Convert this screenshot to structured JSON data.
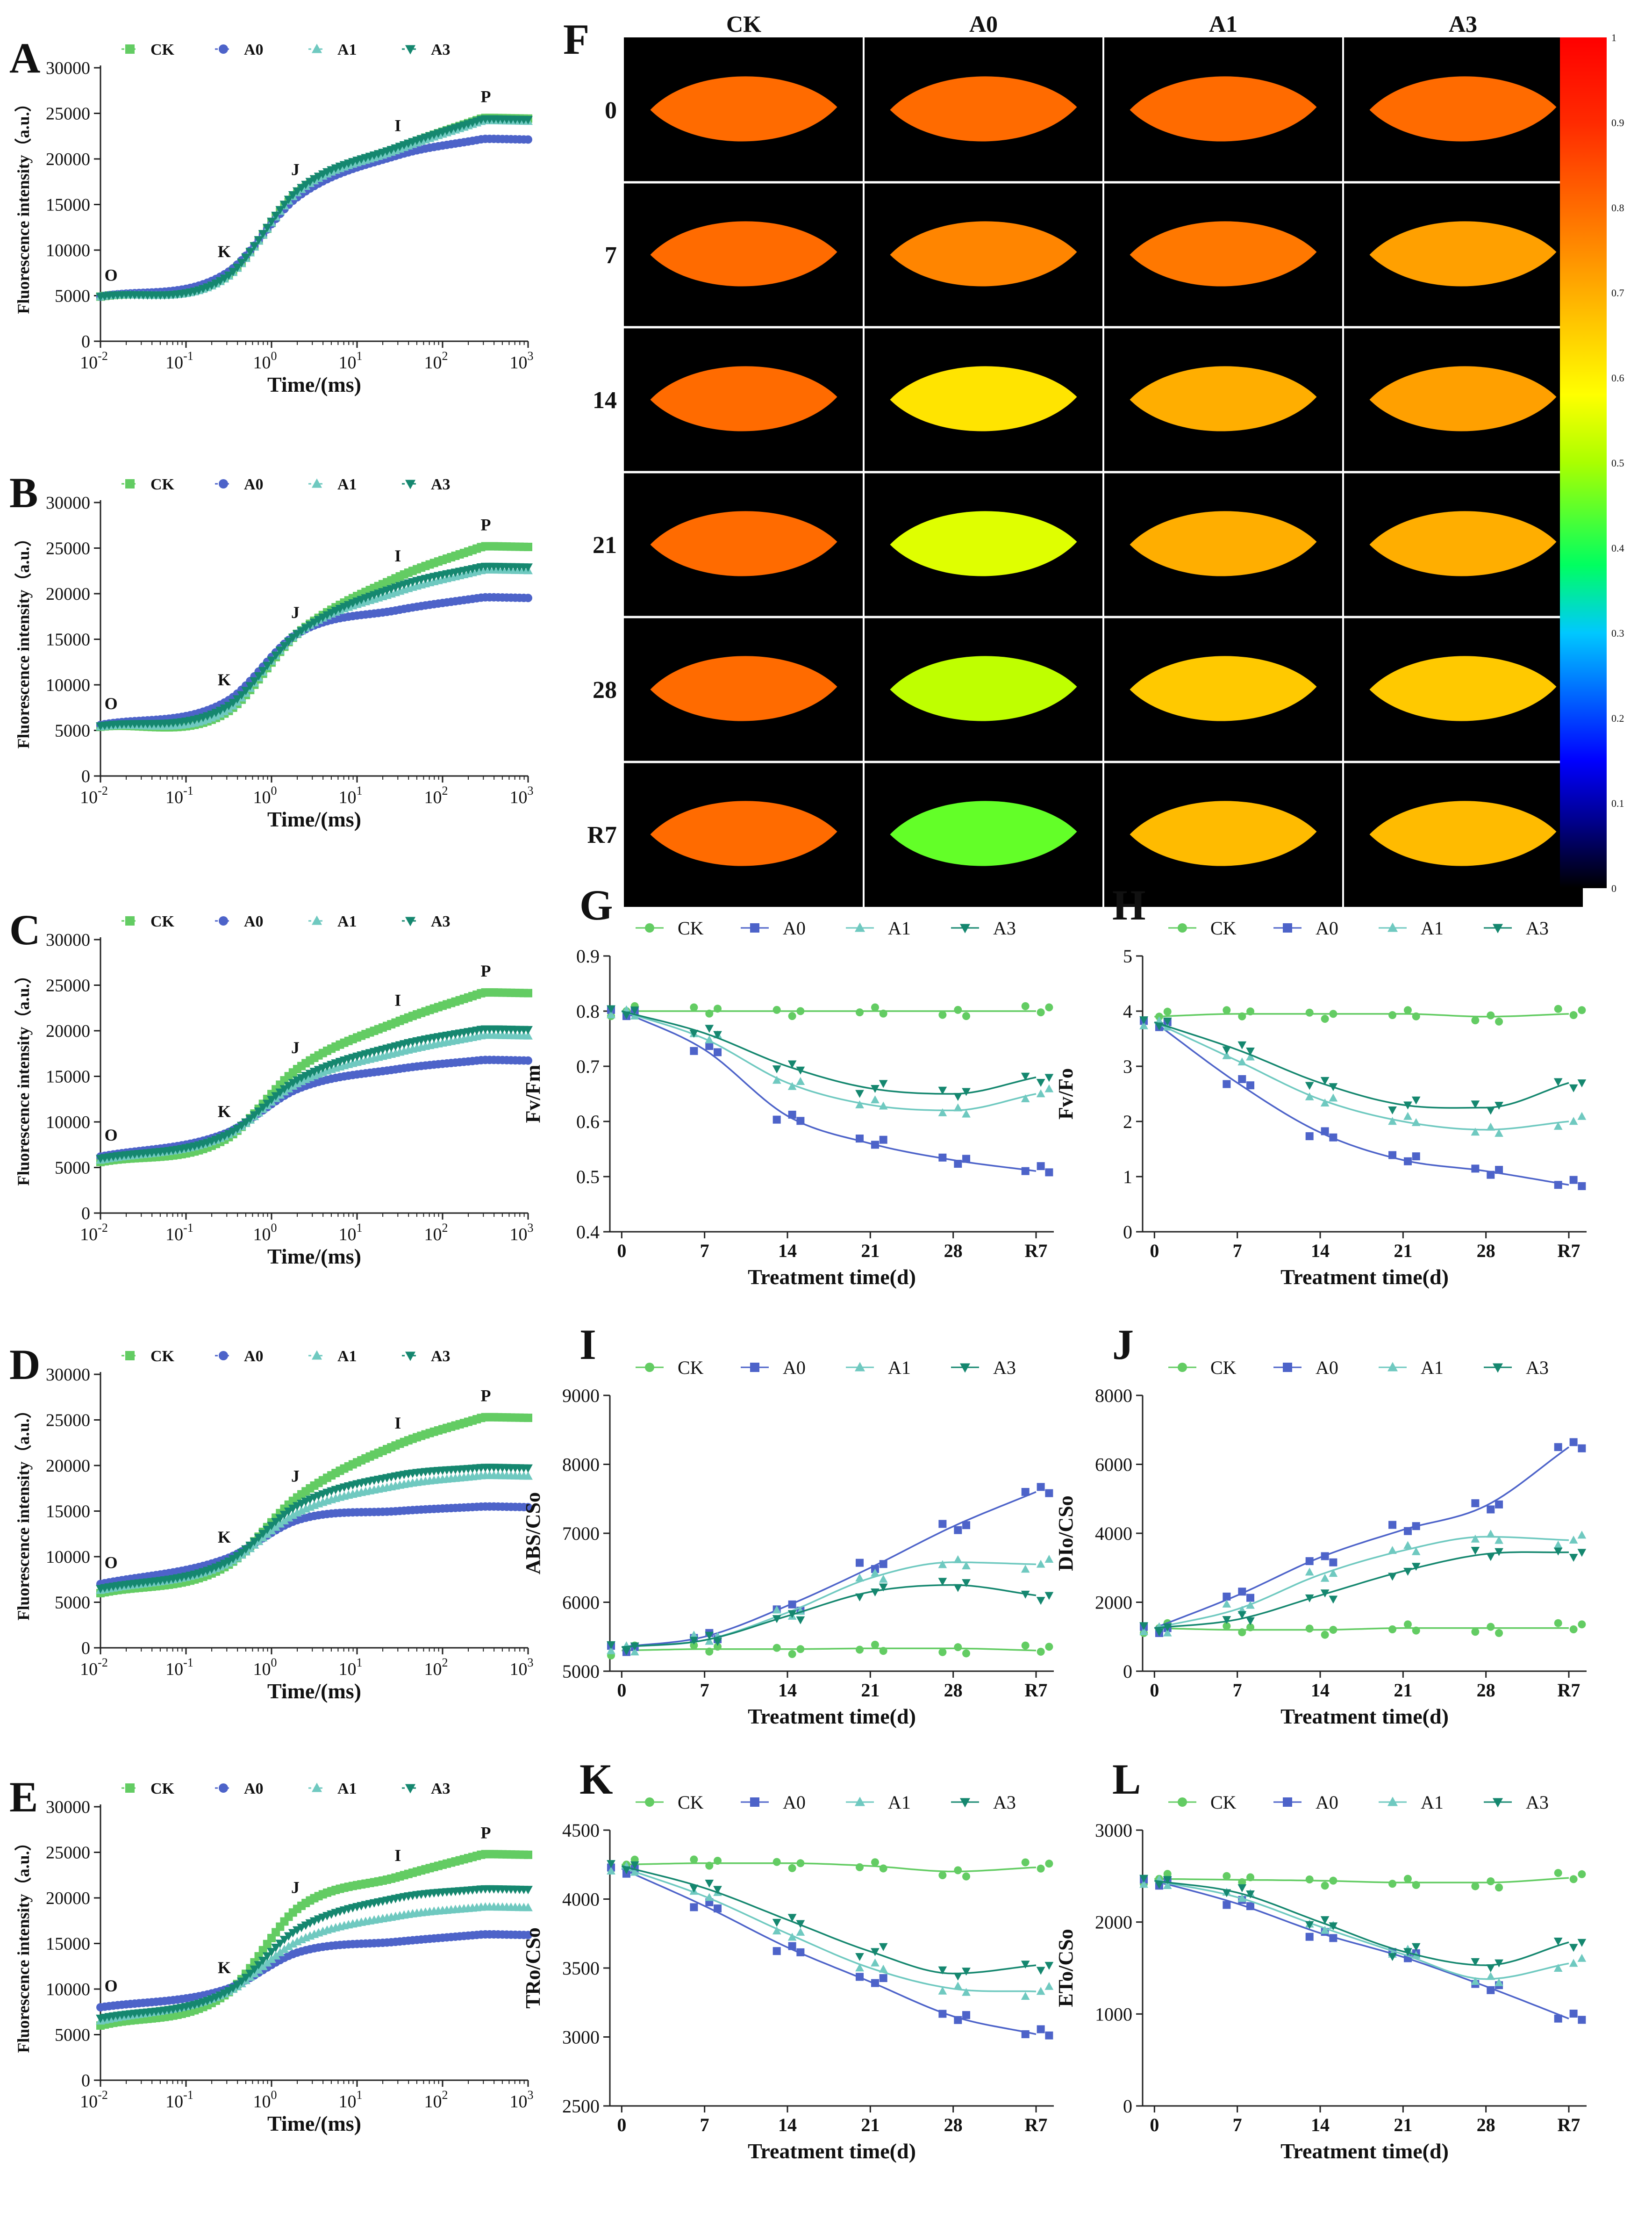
{
  "colors": {
    "CK": "#63cc63",
    "A0": "#4d63c9",
    "A1": "#6fc9c0",
    "A3": "#15876f"
  },
  "ojip": {
    "letters": [
      "A",
      "B",
      "C",
      "D",
      "E"
    ],
    "ylabel": "Fluorescence intensity（a.u.）",
    "xlabel": "Time/(ms)",
    "yticks": [
      "0",
      "5000",
      "10000",
      "15000",
      "20000",
      "25000",
      "30000"
    ],
    "xticks_exp": [
      "-2",
      "-1",
      "0",
      "1",
      "2",
      "3"
    ],
    "series_names": [
      "CK",
      "A0",
      "A1",
      "A3"
    ],
    "markers": {
      "CK": "square",
      "A0": "circle",
      "A1": "triangle-up",
      "A3": "triangle-down"
    },
    "point_labels": [
      "O",
      "K",
      "J",
      "I",
      "P"
    ]
  },
  "chart_data": [
    {
      "type": "scatter",
      "panel": "A",
      "x_scale": "log",
      "xlim": [
        0.01,
        1000
      ],
      "ylim": [
        0,
        30000
      ],
      "xlabel": "Time/(ms)",
      "ylabel": "Fluorescence intensity（a.u.）",
      "key_x": [
        0.01,
        0.3,
        2,
        30,
        300
      ],
      "series": [
        {
          "name": "CK",
          "values": [
            4900,
            7200,
            16200,
            21200,
            24500
          ]
        },
        {
          "name": "A0",
          "values": [
            4900,
            7500,
            15800,
            20400,
            22200
          ]
        },
        {
          "name": "A1",
          "values": [
            4900,
            7000,
            16300,
            21000,
            24200
          ]
        },
        {
          "name": "A3",
          "values": [
            4900,
            7100,
            16500,
            21300,
            24400
          ]
        }
      ]
    },
    {
      "type": "scatter",
      "panel": "B",
      "x_scale": "log",
      "xlim": [
        0.01,
        1000
      ],
      "ylim": [
        0,
        30000
      ],
      "xlabel": "Time/(ms)",
      "ylabel": "Fluorescence intensity（a.u.）",
      "key_x": [
        0.01,
        0.3,
        2,
        30,
        300
      ],
      "series": [
        {
          "name": "CK",
          "values": [
            5400,
            7000,
            15600,
            21800,
            25200
          ]
        },
        {
          "name": "A0",
          "values": [
            5600,
            8200,
            15600,
            18200,
            19600
          ]
        },
        {
          "name": "A1",
          "values": [
            5400,
            7200,
            15600,
            20200,
            22600
          ]
        },
        {
          "name": "A3",
          "values": [
            5500,
            7600,
            15600,
            20800,
            23000
          ]
        }
      ]
    },
    {
      "type": "scatter",
      "panel": "C",
      "x_scale": "log",
      "xlim": [
        0.01,
        1000
      ],
      "ylim": [
        0,
        30000
      ],
      "xlabel": "Time/(ms)",
      "ylabel": "Fluorescence intensity（a.u.）",
      "key_x": [
        0.01,
        0.3,
        2,
        30,
        300
      ],
      "series": [
        {
          "name": "CK",
          "values": [
            5600,
            8200,
            15800,
            21000,
            24200
          ]
        },
        {
          "name": "A0",
          "values": [
            6200,
            8800,
            13600,
            15800,
            16800
          ]
        },
        {
          "name": "A1",
          "values": [
            5800,
            8500,
            14200,
            17600,
            19500
          ]
        },
        {
          "name": "A3",
          "values": [
            6000,
            8600,
            14600,
            18400,
            20200
          ]
        }
      ]
    },
    {
      "type": "scatter",
      "panel": "D",
      "x_scale": "log",
      "xlim": [
        0.01,
        1000
      ],
      "ylim": [
        0,
        30000
      ],
      "xlabel": "Time/(ms)",
      "ylabel": "Fluorescence intensity（a.u.）",
      "key_x": [
        0.01,
        0.3,
        2,
        30,
        300
      ],
      "series": [
        {
          "name": "CK",
          "values": [
            6000,
            9000,
            16500,
            22300,
            25300
          ]
        },
        {
          "name": "A0",
          "values": [
            7000,
            9800,
            14000,
            15000,
            15500
          ]
        },
        {
          "name": "A1",
          "values": [
            6300,
            9200,
            14800,
            17800,
            18900
          ]
        },
        {
          "name": "A3",
          "values": [
            6500,
            9400,
            15600,
            18900,
            19800
          ]
        }
      ]
    },
    {
      "type": "scatter",
      "panel": "E",
      "x_scale": "log",
      "xlim": [
        0.01,
        1000
      ],
      "ylim": [
        0,
        30000
      ],
      "xlabel": "Time/(ms)",
      "ylabel": "Fluorescence intensity（a.u.）",
      "key_x": [
        0.01,
        0.3,
        2,
        30,
        300
      ],
      "series": [
        {
          "name": "CK",
          "values": [
            6000,
            9500,
            18800,
            22300,
            24800
          ]
        },
        {
          "name": "A0",
          "values": [
            8000,
            10000,
            14000,
            15200,
            16000
          ]
        },
        {
          "name": "A1",
          "values": [
            6500,
            9600,
            15200,
            18000,
            19000
          ]
        },
        {
          "name": "A3",
          "values": [
            6800,
            9700,
            16500,
            20000,
            21000
          ]
        }
      ]
    },
    {
      "type": "line",
      "panel": "G",
      "categories": [
        "0",
        "7",
        "14",
        "21",
        "28",
        "R7"
      ],
      "x": [
        0,
        7,
        14,
        21,
        28,
        35
      ],
      "ylabel": "Fv/Fm",
      "xlabel": "Treatment time(d)",
      "ylim": [
        0.4,
        0.9
      ],
      "yticks": [
        "0.4",
        "0.5",
        "0.6",
        "0.7",
        "0.8",
        "0.9"
      ],
      "series": [
        {
          "name": "CK",
          "values": [
            0.8,
            0.8,
            0.8,
            0.8,
            0.8,
            0.8
          ]
        },
        {
          "name": "A0",
          "values": [
            0.8,
            0.73,
            0.61,
            0.56,
            0.53,
            0.51
          ]
        },
        {
          "name": "A1",
          "values": [
            0.8,
            0.75,
            0.67,
            0.63,
            0.62,
            0.65
          ]
        },
        {
          "name": "A3",
          "values": [
            0.8,
            0.76,
            0.7,
            0.66,
            0.65,
            0.68
          ]
        }
      ]
    },
    {
      "type": "line",
      "panel": "H",
      "categories": [
        "0",
        "7",
        "14",
        "21",
        "28",
        "R7"
      ],
      "x": [
        0,
        7,
        14,
        21,
        28,
        35
      ],
      "ylabel": "Fv/Fo",
      "xlabel": "Treatment time(d)",
      "ylim": [
        0,
        5
      ],
      "yticks": [
        "0",
        "1",
        "2",
        "3",
        "4",
        "5"
      ],
      "series": [
        {
          "name": "CK",
          "values": [
            3.9,
            3.95,
            3.95,
            3.95,
            3.9,
            3.95
          ]
        },
        {
          "name": "A0",
          "values": [
            3.8,
            2.7,
            1.8,
            1.3,
            1.1,
            0.85
          ]
        },
        {
          "name": "A1",
          "values": [
            3.8,
            3.1,
            2.4,
            2.0,
            1.85,
            2.0
          ]
        },
        {
          "name": "A3",
          "values": [
            3.8,
            3.3,
            2.7,
            2.3,
            2.25,
            2.7
          ]
        }
      ]
    },
    {
      "type": "line",
      "panel": "I",
      "categories": [
        "0",
        "7",
        "14",
        "21",
        "28",
        "R7"
      ],
      "x": [
        0,
        7,
        14,
        21,
        28,
        35
      ],
      "ylabel": "ABS/CSo",
      "xlabel": "Treatment time(d)",
      "ylim": [
        5000,
        9000
      ],
      "yticks": [
        "5000",
        "6000",
        "7000",
        "8000",
        "9000"
      ],
      "series": [
        {
          "name": "CK",
          "values": [
            5300,
            5320,
            5320,
            5330,
            5330,
            5300
          ]
        },
        {
          "name": "A0",
          "values": [
            5350,
            5500,
            5950,
            6500,
            7100,
            7600
          ]
        },
        {
          "name": "A1",
          "values": [
            5350,
            5450,
            5850,
            6350,
            6580,
            6550
          ]
        },
        {
          "name": "A3",
          "values": [
            5350,
            5450,
            5800,
            6150,
            6250,
            6100
          ]
        }
      ]
    },
    {
      "type": "line",
      "panel": "J",
      "categories": [
        "0",
        "7",
        "14",
        "21",
        "28",
        "R7"
      ],
      "x": [
        0,
        7,
        14,
        21,
        28,
        35
      ],
      "ylabel": "DIo/CSo",
      "xlabel": "Treatment time(d)",
      "ylim": [
        0,
        8000
      ],
      "yticks": [
        "0",
        "2000",
        "4000",
        "6000",
        "8000"
      ],
      "series": [
        {
          "name": "CK",
          "values": [
            1250,
            1200,
            1200,
            1250,
            1250,
            1250
          ]
        },
        {
          "name": "A0",
          "values": [
            1250,
            2200,
            3300,
            4100,
            4800,
            6500
          ]
        },
        {
          "name": "A1",
          "values": [
            1250,
            1800,
            2800,
            3500,
            3900,
            3800
          ]
        },
        {
          "name": "A3",
          "values": [
            1250,
            1500,
            2200,
            2900,
            3400,
            3450
          ]
        }
      ]
    },
    {
      "type": "line",
      "panel": "K",
      "categories": [
        "0",
        "7",
        "14",
        "21",
        "28",
        "R7"
      ],
      "x": [
        0,
        7,
        14,
        21,
        28,
        35
      ],
      "ylabel": "TRo/CSo",
      "xlabel": "Treatment time(d)",
      "ylim": [
        2500,
        4500
      ],
      "yticks": [
        "2500",
        "3000",
        "3500",
        "4000",
        "4500"
      ],
      "series": [
        {
          "name": "CK",
          "values": [
            4250,
            4260,
            4260,
            4240,
            4200,
            4230
          ]
        },
        {
          "name": "A0",
          "values": [
            4220,
            3950,
            3650,
            3400,
            3150,
            3020
          ]
        },
        {
          "name": "A1",
          "values": [
            4230,
            4020,
            3750,
            3500,
            3350,
            3330
          ]
        },
        {
          "name": "A3",
          "values": [
            4240,
            4080,
            3850,
            3620,
            3460,
            3520
          ]
        }
      ]
    },
    {
      "type": "line",
      "panel": "L",
      "categories": [
        "0",
        "7",
        "14",
        "21",
        "28",
        "R7"
      ],
      "x": [
        0,
        7,
        14,
        21,
        28,
        35
      ],
      "ylabel": "ETo/CSo",
      "xlabel": "Treatment time(d)",
      "ylim": [
        0,
        3000
      ],
      "yticks": [
        "0",
        "1000",
        "2000",
        "3000"
      ],
      "series": [
        {
          "name": "CK",
          "values": [
            2470,
            2460,
            2450,
            2430,
            2430,
            2480
          ]
        },
        {
          "name": "A0",
          "values": [
            2450,
            2200,
            1880,
            1620,
            1300,
            950
          ]
        },
        {
          "name": "A1",
          "values": [
            2450,
            2270,
            1950,
            1650,
            1380,
            1550
          ]
        },
        {
          "name": "A3",
          "values": [
            2450,
            2320,
            2000,
            1680,
            1530,
            1780
          ]
        }
      ]
    }
  ],
  "imaging": {
    "letter": "F",
    "columns": [
      "CK",
      "A0",
      "A1",
      "A3"
    ],
    "rows": [
      "0",
      "7",
      "14",
      "21",
      "28",
      "R7"
    ],
    "scale_ticks": [
      "0",
      "0.1",
      "0.2",
      "0.3",
      "0.4",
      "0.5",
      "0.6",
      "0.7",
      "0.8",
      "0.9",
      "1"
    ],
    "fvfm_values": [
      [
        0.8,
        0.8,
        0.8,
        0.8
      ],
      [
        0.8,
        0.76,
        0.78,
        0.72
      ],
      [
        0.8,
        0.62,
        0.7,
        0.72
      ],
      [
        0.8,
        0.55,
        0.7,
        0.7
      ],
      [
        0.8,
        0.52,
        0.66,
        0.66
      ],
      [
        0.8,
        0.45,
        0.68,
        0.68
      ]
    ]
  }
}
